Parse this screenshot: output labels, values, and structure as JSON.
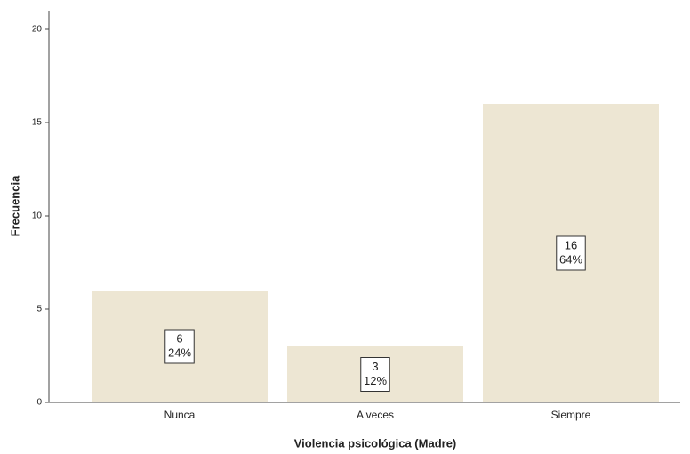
{
  "chart_data": {
    "type": "bar",
    "x_label": "Violencia psicológica (Madre)",
    "y_label": "Frecuencia",
    "categories": [
      "Nunca",
      "A veces",
      "Siempre"
    ],
    "values": [
      6,
      3,
      16
    ],
    "percent_labels": [
      "24%",
      "12%",
      "64%"
    ],
    "color": "#ede6d3",
    "ylim": [
      0,
      21
    ],
    "yticks": [
      0,
      5,
      10,
      15,
      20
    ],
    "grid": false
  }
}
